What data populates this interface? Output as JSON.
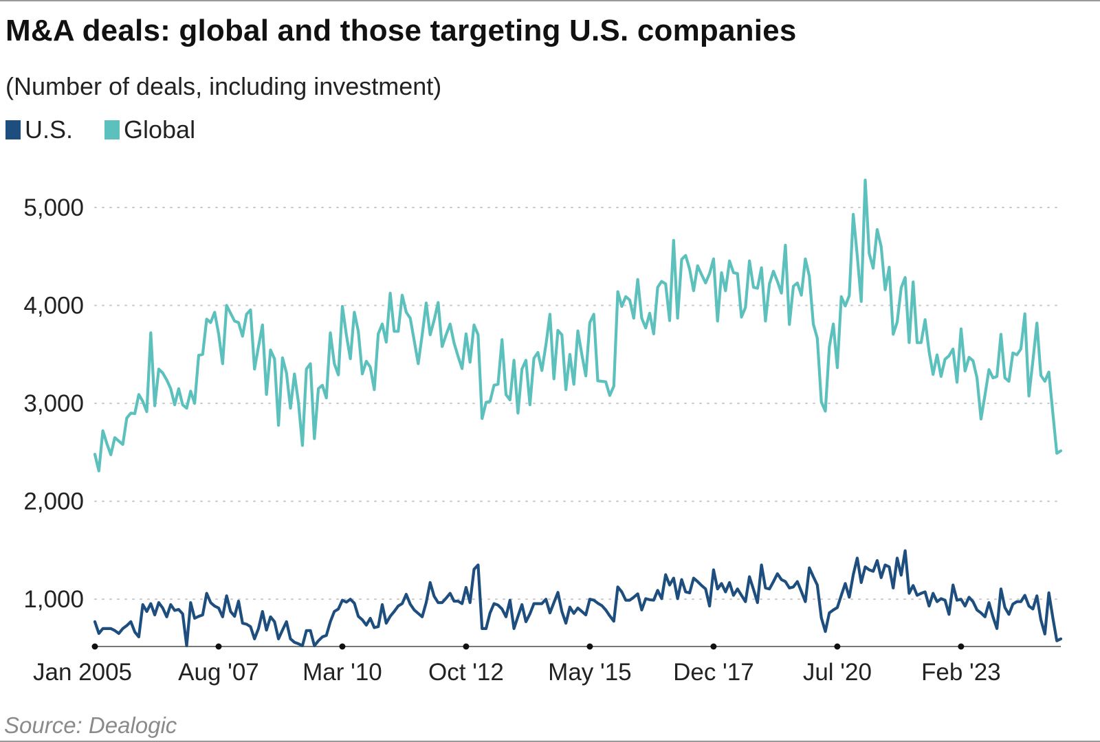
{
  "title": "M&A deals: global and those targeting U.S. companies",
  "subtitle": "(Number of deals, including investment)",
  "source": "Source: Dealogic",
  "legend": [
    {
      "label": "U.S.",
      "color": "#1d4e7e"
    },
    {
      "label": "Global",
      "color": "#5cc0bd"
    }
  ],
  "chart_data": {
    "type": "line",
    "title": "M&A deals: global and those targeting U.S. companies",
    "subtitle": "(Number of deals, including investment)",
    "xlabel": "",
    "ylabel": "Number of deals",
    "x_start": "Jan 2005",
    "x_end": "Mar 2025",
    "x_frequency": "monthly",
    "x_tick_labels": [
      "Jan 2005",
      "Aug '07",
      "Mar '10",
      "Oct '12",
      "May '15",
      "Dec '17",
      "Jul '20",
      "Feb '23"
    ],
    "x_tick_month_index": [
      0,
      31,
      62,
      93,
      124,
      155,
      186,
      217
    ],
    "y_ticks": [
      1000,
      2000,
      3000,
      4000,
      5000
    ],
    "y_tick_labels": [
      "1,000",
      "2,000",
      "3,000",
      "4,000",
      "5,000"
    ],
    "ylim": [
      517,
      5350
    ],
    "grid": "horizontal dotted",
    "legend_position": "top-left",
    "series": [
      {
        "name": "U.S.",
        "color": "#1d4e7e",
        "values": [
          770,
          650,
          700,
          700,
          700,
          680,
          650,
          700,
          730,
          770,
          665,
          615,
          945,
          875,
          955,
          840,
          965,
          910,
          820,
          945,
          885,
          895,
          850,
          525,
          965,
          805,
          825,
          840,
          1060,
          965,
          930,
          910,
          820,
          1035,
          875,
          825,
          980,
          755,
          745,
          720,
          595,
          700,
          875,
          685,
          820,
          770,
          595,
          685,
          770,
          595,
          560,
          545,
          525,
          680,
          680,
          525,
          575,
          615,
          630,
          770,
          875,
          900,
          990,
          970,
          1000,
          960,
          825,
          790,
          735,
          805,
          710,
          720,
          945,
          755,
          825,
          875,
          930,
          955,
          1050,
          950,
          890,
          855,
          820,
          965,
          1170,
          1030,
          965,
          965,
          1010,
          1060,
          980,
          980,
          955,
          1120,
          965,
          1305,
          1350,
          700,
          700,
          860,
          955,
          940,
          900,
          820,
          990,
          700,
          825,
          945,
          770,
          850,
          955,
          955,
          955,
          1000,
          860,
          965,
          1070,
          875,
          755,
          920,
          855,
          910,
          875,
          840,
          1000,
          990,
          960,
          935,
          890,
          830,
          775,
          1125,
          1075,
          990,
          990,
          1020,
          1055,
          890,
          1005,
          995,
          990,
          1090,
          1005,
          1250,
          1145,
          1215,
          1005,
          1200,
          1075,
          1065,
          1215,
          1180,
          1140,
          1105,
          930,
          1300,
          1105,
          1160,
          1075,
          1170,
          1040,
          1105,
          1040,
          975,
          1230,
          1100,
          965,
          1350,
          1115,
          1105,
          1180,
          1260,
          1200,
          1180,
          1115,
          1125,
          1180,
          1080,
          975,
          1320,
          1230,
          1145,
          810,
          670,
          860,
          890,
          915,
          1040,
          1160,
          1020,
          1250,
          1420,
          1170,
          1330,
          1300,
          1285,
          1395,
          1220,
          1350,
          1330,
          1115,
          1420,
          1245,
          1495,
          1060,
          1140,
          1040,
          1060,
          1075,
          930,
          1060,
          975,
          1005,
          990,
          845,
          1145,
          990,
          1000,
          930,
          1020,
          975,
          890,
          860,
          820,
          965,
          820,
          700,
          1105,
          915,
          845,
          950,
          975,
          975,
          1040,
          930,
          900,
          1035,
          790,
          645,
          1065,
          810,
          575,
          595
        ]
      },
      {
        "name": "Global",
        "color": "#5cc0bd",
        "values": [
          2480,
          2310,
          2720,
          2590,
          2475,
          2650,
          2615,
          2580,
          2850,
          2900,
          2895,
          3090,
          3020,
          2915,
          3720,
          2975,
          3350,
          3310,
          3240,
          3150,
          2985,
          3150,
          2985,
          2950,
          3125,
          3000,
          3490,
          3500,
          3860,
          3825,
          3930,
          3710,
          3405,
          4000,
          3920,
          3840,
          3825,
          3685,
          3910,
          3955,
          3350,
          3580,
          3800,
          3090,
          3545,
          3455,
          2775,
          3465,
          3310,
          2950,
          3300,
          3010,
          2570,
          3350,
          3405,
          2640,
          3150,
          3185,
          3055,
          3720,
          3405,
          3290,
          3990,
          3700,
          3455,
          3930,
          3735,
          3300,
          3430,
          3370,
          3140,
          3710,
          3810,
          3625,
          4125,
          3735,
          3735,
          4105,
          3930,
          3870,
          3640,
          3405,
          3700,
          4025,
          3700,
          3850,
          4030,
          3580,
          3700,
          3810,
          3615,
          3480,
          3355,
          3710,
          3420,
          3800,
          3700,
          2845,
          3010,
          3020,
          3185,
          3195,
          3650,
          3090,
          3035,
          3440,
          2900,
          3350,
          3440,
          2985,
          3460,
          3520,
          3335,
          3600,
          3910,
          3250,
          3745,
          3700,
          3140,
          3500,
          3195,
          3740,
          3500,
          3280,
          3825,
          3910,
          3230,
          3225,
          3220,
          3080,
          3175,
          4140,
          3990,
          4090,
          4055,
          3870,
          4265,
          3870,
          3770,
          3920,
          3710,
          4185,
          4245,
          4220,
          3845,
          4665,
          3870,
          4470,
          4510,
          4370,
          4150,
          4405,
          4315,
          4230,
          4325,
          4475,
          3840,
          4335,
          4150,
          4455,
          4335,
          4325,
          3880,
          3980,
          4455,
          4185,
          4175,
          4385,
          3840,
          4220,
          4350,
          4245,
          4125,
          4615,
          3805,
          4195,
          4230,
          4105,
          4475,
          4300,
          3810,
          3665,
          3015,
          2920,
          3575,
          3810,
          3365,
          4090,
          3995,
          4100,
          4930,
          4510,
          4040,
          5280,
          4530,
          4380,
          4775,
          4600,
          4160,
          4390,
          3705,
          3830,
          4180,
          4285,
          3620,
          4240,
          3620,
          3620,
          3855,
          3530,
          3295,
          3495,
          3275,
          3450,
          3485,
          3555,
          3215,
          3760,
          3330,
          3470,
          3435,
          3260,
          2840,
          3085,
          3345,
          3260,
          3275,
          3705,
          3260,
          3225,
          3515,
          3495,
          3555,
          3915,
          3075,
          3435,
          3820,
          3285,
          3225,
          3320,
          2900,
          2490,
          2515
        ]
      }
    ]
  }
}
